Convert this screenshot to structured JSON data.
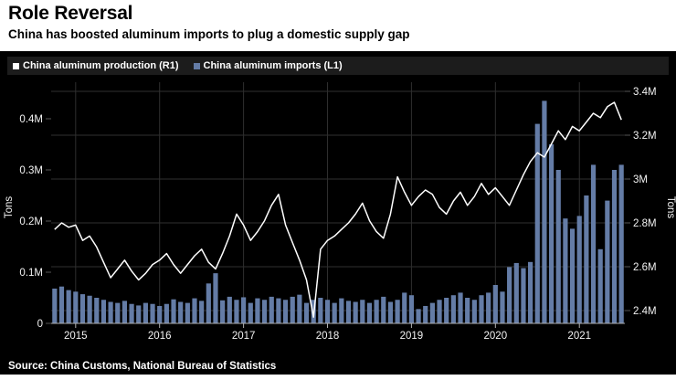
{
  "header": {
    "title": "Role Reversal",
    "subtitle": "China has boosted aluminum imports to plug a domestic supply gap"
  },
  "source": "Source: China Customs, National Bureau of Statistics",
  "chart_data": {
    "type": "bar+line",
    "title": "Role Reversal",
    "subtitle": "China has boosted aluminum imports to plug a domestic supply gap",
    "x_start_month": "2014-10",
    "x_tick_labels": [
      "2015",
      "2016",
      "2017",
      "2018",
      "2019",
      "2020",
      "2021"
    ],
    "x_tick_month_indices": [
      3,
      15,
      27,
      39,
      51,
      63,
      75
    ],
    "left_axis": {
      "label": "Tons",
      "tick_labels": [
        "0",
        "0.1M",
        "0.2M",
        "0.3M",
        "0.4M"
      ],
      "tick_values": [
        0,
        0.1,
        0.2,
        0.3,
        0.4
      ],
      "range": [
        0,
        0.4
      ]
    },
    "right_axis": {
      "label": "Tons",
      "tick_labels": [
        "2.4M",
        "2.6M",
        "2.8M",
        "3M",
        "3.2M",
        "3.4M"
      ],
      "tick_values": [
        2.4,
        2.6,
        2.8,
        3.0,
        3.2,
        3.4
      ],
      "range": [
        2.4,
        3.4
      ]
    },
    "grid_color": "#2f2f2f",
    "axis_color": "#b0b0b0",
    "tick_text_color": "#f2f2f2",
    "series": [
      {
        "name": "China aluminum production (R1)",
        "type": "line",
        "axis": "right",
        "color": "#ffffff",
        "unit": "M tons",
        "values": [
          2.77,
          2.8,
          2.78,
          2.79,
          2.72,
          2.74,
          2.69,
          2.62,
          2.55,
          2.59,
          2.63,
          2.58,
          2.54,
          2.57,
          2.61,
          2.63,
          2.66,
          2.61,
          2.57,
          2.61,
          2.65,
          2.68,
          2.62,
          2.59,
          2.66,
          2.74,
          2.84,
          2.79,
          2.72,
          2.76,
          2.81,
          2.88,
          2.93,
          2.79,
          2.71,
          2.63,
          2.54,
          2.37,
          2.68,
          2.72,
          2.74,
          2.77,
          2.8,
          2.84,
          2.89,
          2.81,
          2.76,
          2.73,
          2.84,
          3.01,
          2.94,
          2.88,
          2.92,
          2.95,
          2.93,
          2.87,
          2.84,
          2.9,
          2.94,
          2.88,
          2.92,
          2.98,
          2.93,
          2.96,
          2.92,
          2.88,
          2.95,
          3.02,
          3.08,
          3.12,
          3.1,
          3.16,
          3.22,
          3.18,
          3.24,
          3.22,
          3.26,
          3.3,
          3.28,
          3.33,
          3.35,
          3.27
        ]
      },
      {
        "name": "China aluminum imports (L1)",
        "type": "bar",
        "axis": "left",
        "color": "#647ca6",
        "unit": "M tons",
        "values": [
          0.068,
          0.072,
          0.065,
          0.062,
          0.057,
          0.054,
          0.05,
          0.046,
          0.042,
          0.04,
          0.044,
          0.038,
          0.035,
          0.04,
          0.038,
          0.034,
          0.038,
          0.047,
          0.042,
          0.04,
          0.049,
          0.044,
          0.078,
          0.098,
          0.045,
          0.052,
          0.046,
          0.051,
          0.04,
          0.049,
          0.046,
          0.052,
          0.049,
          0.046,
          0.052,
          0.056,
          0.04,
          0.046,
          0.05,
          0.046,
          0.04,
          0.049,
          0.044,
          0.042,
          0.046,
          0.04,
          0.046,
          0.052,
          0.042,
          0.046,
          0.06,
          0.055,
          0.028,
          0.034,
          0.04,
          0.046,
          0.05,
          0.055,
          0.06,
          0.05,
          0.046,
          0.055,
          0.06,
          0.075,
          0.062,
          0.11,
          0.118,
          0.108,
          0.12,
          0.39,
          0.435,
          0.35,
          0.3,
          0.205,
          0.185,
          0.21,
          0.25,
          0.31,
          0.145,
          0.24,
          0.3,
          0.31
        ]
      }
    ]
  }
}
